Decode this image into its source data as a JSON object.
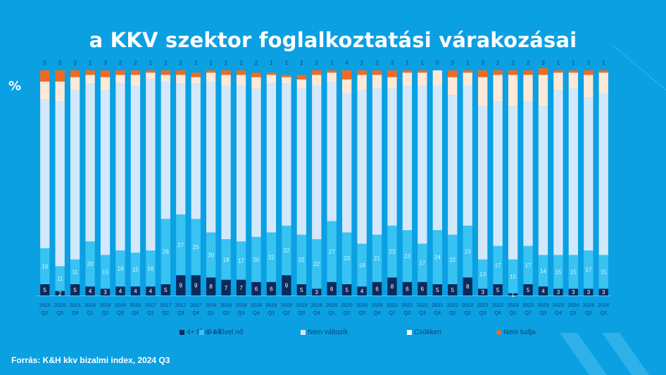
{
  "header": {
    "title": "a KKV szektor foglalkoztatási várakozásai",
    "unit_label": "%"
  },
  "footer": {
    "source": "Forrás: K&H kkv bizalmi index, 2024 Q3"
  },
  "colors": {
    "background": "#0aa0e2",
    "grow_4plus": "#0b2a5c",
    "grow_1_4": "#38c3f3",
    "no_change": "#d3e8fb",
    "decrease": "#fde9d6",
    "dont_know": "#f26a21",
    "axis_text": "#0d3f7a"
  },
  "chart_data": {
    "type": "bar",
    "stacked": true,
    "title": "a KKV szektor foglalkoztatási várakozásai",
    "xlabel": "",
    "ylabel": "%",
    "ylim": [
      0,
      100
    ],
    "y_ticks": [
      0,
      20,
      40,
      60,
      80,
      100
    ],
    "grid": false,
    "legend_position": "bottom",
    "categories": [
      [
        "2015",
        "Q2"
      ],
      [
        "2015",
        "Q3"
      ],
      [
        "2015",
        "Q4"
      ],
      [
        "2016",
        "Q1"
      ],
      [
        "2016",
        "Q2"
      ],
      [
        "2016",
        "Q3"
      ],
      [
        "2016",
        "Q4"
      ],
      [
        "2017",
        "Q1"
      ],
      [
        "2017",
        "Q2"
      ],
      [
        "2017",
        "Q3"
      ],
      [
        "2017",
        "Q4"
      ],
      [
        "2018",
        "Q1"
      ],
      [
        "2018",
        "Q2"
      ],
      [
        "2018",
        "Q3"
      ],
      [
        "2018",
        "Q4"
      ],
      [
        "2019",
        "Q1"
      ],
      [
        "2019",
        "Q2"
      ],
      [
        "2019",
        "Q3"
      ],
      [
        "2019",
        "Q4"
      ],
      [
        "2020",
        "Q1"
      ],
      [
        "2020",
        "Q2"
      ],
      [
        "2020",
        "Q3"
      ],
      [
        "2020",
        "Q4"
      ],
      [
        "2021",
        "Q1"
      ],
      [
        "2021",
        "Q2"
      ],
      [
        "2021",
        "Q3"
      ],
      [
        "2021",
        "Q4"
      ],
      [
        "2022",
        "Q1"
      ],
      [
        "2022",
        "Q2"
      ],
      [
        "2022",
        "Q3"
      ],
      [
        "2022",
        "Q4"
      ],
      [
        "2023",
        "Q1"
      ],
      [
        "2023",
        "Q2"
      ],
      [
        "2023",
        "Q3"
      ],
      [
        "2023",
        "Q4"
      ],
      [
        "2024",
        "Q1"
      ],
      [
        "2024",
        "Q2"
      ],
      [
        "2024",
        "Q3"
      ]
    ],
    "series": [
      {
        "name": "4+ fővel nő",
        "color_key": "grow_4plus",
        "show_labels": true,
        "values": [
          5,
          2,
          5,
          4,
          3,
          4,
          4,
          4,
          5,
          9,
          9,
          8,
          7,
          7,
          6,
          6,
          9,
          5,
          3,
          6,
          5,
          4,
          6,
          8,
          6,
          6,
          5,
          5,
          8,
          3,
          5,
          1,
          5,
          4,
          3,
          3,
          3,
          3
        ]
      },
      {
        "name": "1-4 fővel nő",
        "color_key": "grow_1_4",
        "show_labels": true,
        "values": [
          16,
          11,
          11,
          20,
          15,
          16,
          15,
          16,
          29,
          27,
          25,
          20,
          18,
          17,
          20,
          22,
          22,
          22,
          22,
          27,
          23,
          19,
          21,
          23,
          23,
          17,
          24,
          22,
          23,
          13,
          17,
          15,
          17,
          14,
          15,
          15,
          17,
          15
        ]
      },
      {
        "name": "Nem változik",
        "color_key": "no_change",
        "show_labels": false,
        "values": [
          66,
          73,
          75,
          70,
          73,
          74,
          74,
          76,
          61,
          58,
          60,
          67,
          68,
          69,
          66,
          66,
          63,
          65,
          68,
          62,
          62,
          68,
          65,
          61,
          64,
          70,
          64,
          62,
          62,
          68,
          64,
          68,
          64,
          66,
          73,
          74,
          68,
          72
        ]
      },
      {
        "name": "Csökken",
        "color_key": "decrease",
        "show_labels": false,
        "values": [
          8,
          9,
          6,
          4,
          6,
          4,
          5,
          3,
          3,
          4,
          3,
          4,
          5,
          5,
          5,
          4,
          3,
          4,
          5,
          4,
          6,
          7,
          6,
          5,
          6,
          6,
          7,
          8,
          6,
          13,
          12,
          14,
          12,
          14,
          8,
          7,
          10,
          9
        ]
      },
      {
        "name": "Nem tudja",
        "color_key": "dont_know",
        "show_labels": true,
        "label_position": "top",
        "values": [
          5,
          5,
          3,
          2,
          3,
          2,
          2,
          1,
          2,
          2,
          2,
          1,
          2,
          2,
          2,
          1,
          1,
          2,
          2,
          1,
          4,
          2,
          2,
          3,
          1,
          1,
          0,
          3,
          1,
          3,
          2,
          2,
          2,
          3,
          1,
          1,
          2,
          1
        ]
      }
    ]
  }
}
